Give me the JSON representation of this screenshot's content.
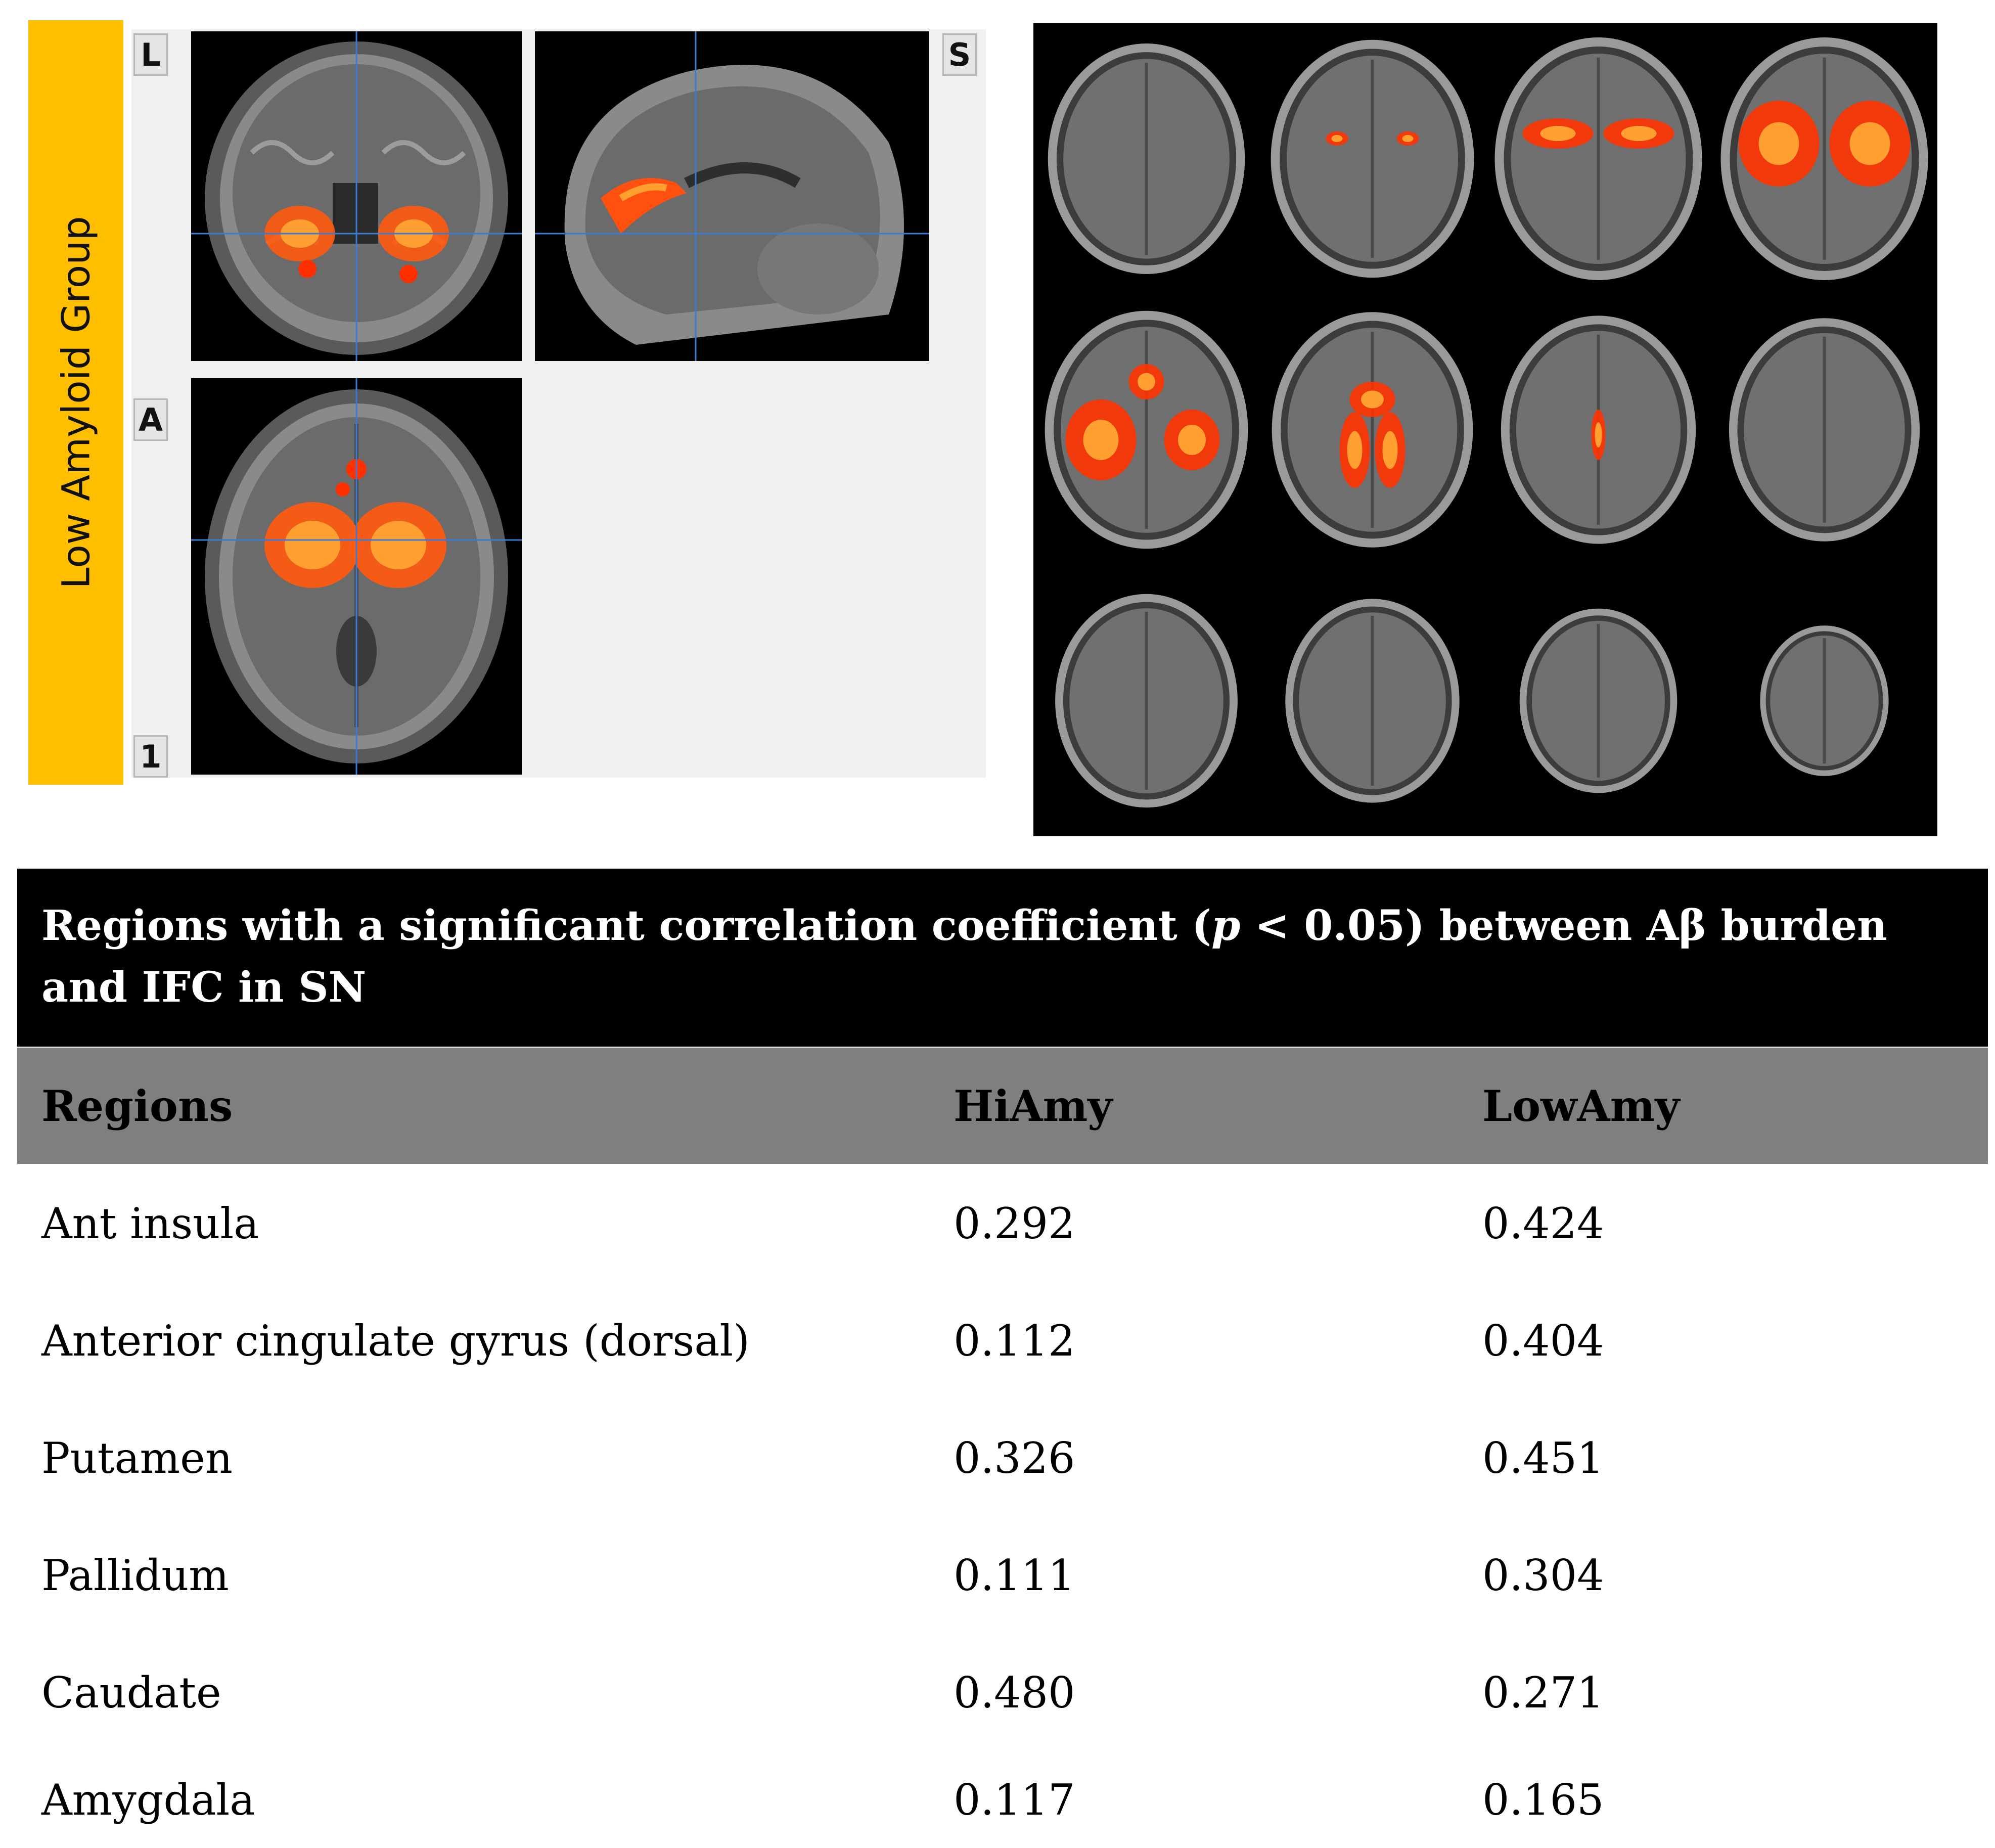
{
  "figure": {
    "group_label": "Low Amyloid Group",
    "orientation_labels": {
      "left": "L",
      "superior": "S",
      "anterior": "A",
      "slice_index": "1"
    },
    "views": [
      "coronal",
      "sagittal",
      "axial"
    ],
    "montage": {
      "rows": 3,
      "cols": 4,
      "plane": "axial"
    },
    "overlay_color": "#ff3300",
    "crosshair_color": "#3a7bd5"
  },
  "table": {
    "title_prefix": "Regions with a significant correlation coefficient (",
    "title_p": "p",
    "title_suffix": " < 0.05) between Aβ burden and IFC in SN",
    "headers": [
      "Regions",
      "HiAmy",
      "LowAmy"
    ],
    "rows": [
      {
        "region": "Ant insula",
        "hiamy": "0.292",
        "lowamy": "0.424"
      },
      {
        "region": "Anterior cingulate gyrus (dorsal)",
        "hiamy": "0.112",
        "lowamy": "0.404"
      },
      {
        "region": "Putamen",
        "hiamy": "0.326",
        "lowamy": "0.451"
      },
      {
        "region": "Pallidum",
        "hiamy": "0.111",
        "lowamy": "0.304"
      },
      {
        "region": "Caudate",
        "hiamy": "0.480",
        "lowamy": "0.271"
      },
      {
        "region": "Amygdala",
        "hiamy": "0.117",
        "lowamy": "0.165"
      }
    ]
  }
}
